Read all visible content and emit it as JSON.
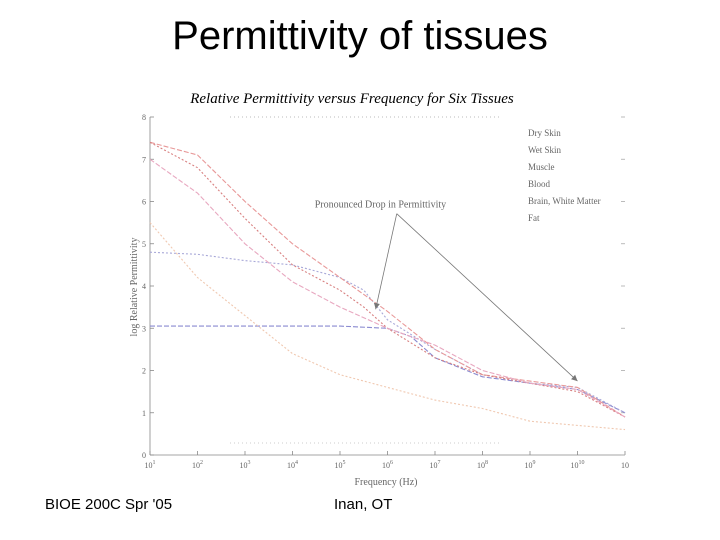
{
  "slide": {
    "title": "Permittivity of tissues",
    "footer_left": "BIOE 200C Spr '05",
    "footer_center": "Inan, OT"
  },
  "chart_data": {
    "type": "line",
    "title": "Relative Permittivity versus Frequency for Six Tissues",
    "xlabel": "Frequency (Hz)",
    "ylabel": "log Relative Permittivity",
    "xscale": "log10",
    "xlim": [
      1,
      11
    ],
    "ylim": [
      0,
      8
    ],
    "x_ticks": [
      {
        "exp": 1,
        "label": "10",
        "sup": "1"
      },
      {
        "exp": 2,
        "label": "10",
        "sup": "2"
      },
      {
        "exp": 3,
        "label": "10",
        "sup": "3"
      },
      {
        "exp": 4,
        "label": "10",
        "sup": "4"
      },
      {
        "exp": 5,
        "label": "10",
        "sup": "5"
      },
      {
        "exp": 6,
        "label": "10",
        "sup": "6"
      },
      {
        "exp": 7,
        "label": "10",
        "sup": "7"
      },
      {
        "exp": 8,
        "label": "10",
        "sup": "8"
      },
      {
        "exp": 9,
        "label": "10",
        "sup": "9"
      },
      {
        "exp": 10,
        "label": "10",
        "sup": "10"
      },
      {
        "exp": 11,
        "label": "10",
        "sup": ""
      }
    ],
    "y_ticks": [
      "0",
      "1",
      "2",
      "3",
      "4",
      "5",
      "6",
      "7",
      "8"
    ],
    "legend_position": "top-right",
    "series": [
      {
        "name": "Dry Skin",
        "color": "#8a8ad0",
        "x": [
          1,
          2,
          3,
          4,
          5,
          6,
          6.5,
          7,
          8,
          9,
          10,
          11
        ],
        "y": [
          3.05,
          3.05,
          3.05,
          3.05,
          3.05,
          3.0,
          2.8,
          2.3,
          1.85,
          1.7,
          1.55,
          1.0
        ]
      },
      {
        "name": "Wet Skin",
        "color": "#a8a8d8",
        "x": [
          1,
          2,
          3,
          4,
          5,
          5.5,
          6,
          7,
          8,
          9,
          10,
          11
        ],
        "y": [
          4.8,
          4.75,
          4.6,
          4.5,
          4.2,
          3.9,
          3.2,
          2.5,
          1.9,
          1.7,
          1.6,
          1.0
        ]
      },
      {
        "name": "Muscle",
        "color": "#e89898",
        "x": [
          1,
          2,
          3,
          4,
          5,
          6,
          7,
          8,
          9,
          10,
          11
        ],
        "y": [
          7.4,
          7.1,
          6.0,
          5.0,
          4.2,
          3.4,
          2.5,
          1.9,
          1.75,
          1.6,
          0.9
        ]
      },
      {
        "name": "Blood",
        "color": "#d88080",
        "x": [
          1,
          2,
          3,
          4,
          5,
          5.5,
          6,
          7,
          8,
          9,
          10,
          11
        ],
        "y": [
          7.4,
          6.8,
          5.6,
          4.5,
          3.9,
          3.5,
          3.0,
          2.3,
          1.9,
          1.7,
          1.5,
          0.9
        ]
      },
      {
        "name": "Brain, White Matter",
        "color": "#e8a8c0",
        "x": [
          1,
          2,
          3,
          4,
          5,
          6,
          7,
          8,
          9,
          10,
          11
        ],
        "y": [
          7.0,
          6.2,
          5.0,
          4.1,
          3.5,
          3.0,
          2.6,
          2.0,
          1.7,
          1.55,
          0.9
        ]
      },
      {
        "name": "Fat",
        "color": "#f0c8b0",
        "x": [
          1,
          2,
          3,
          4,
          5,
          6,
          7,
          8,
          9,
          10,
          11
        ],
        "y": [
          5.5,
          4.2,
          3.3,
          2.4,
          1.9,
          1.6,
          1.3,
          1.1,
          0.8,
          0.7,
          0.6
        ]
      }
    ],
    "annotations": [
      {
        "text": "Pronounced Drop in Permittivity",
        "x": 5.9,
        "y": 5.9,
        "arrows": [
          {
            "x": 5.75,
            "y": 3.45
          },
          {
            "x": 10.0,
            "y": 1.75
          }
        ]
      }
    ],
    "colors": {
      "axis": "#888888",
      "tick_text": "#666666",
      "annotation": "#777777",
      "title": "#000000"
    }
  }
}
